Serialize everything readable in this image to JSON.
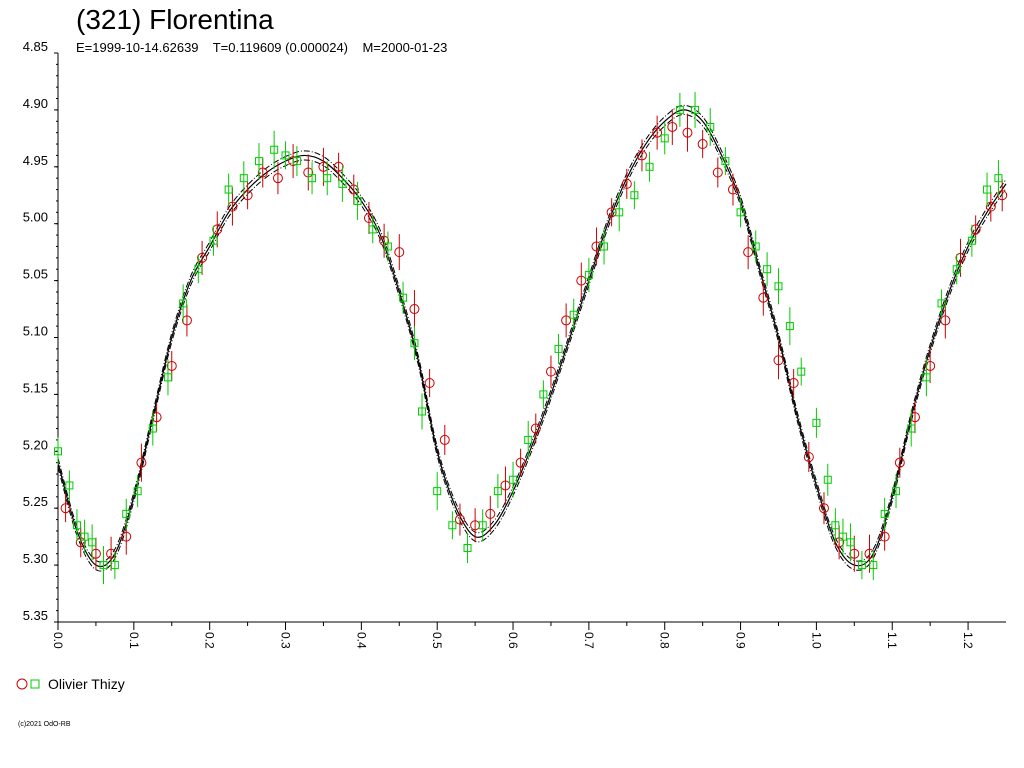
{
  "header": {
    "title": "(321) Florentina",
    "subtitle": "E=1999-10-14.62639    T=0.119609 (0.000024)    M=2000-01-23"
  },
  "legend": {
    "label": "Olivier Thizy"
  },
  "footer": {
    "copyright": "(c)2021 OdO-RB"
  },
  "colors": {
    "red": "#cc0000",
    "green": "#00cc00",
    "axis": "#000000"
  },
  "chart_data": {
    "type": "scatter",
    "x_ticks": [
      "0.0",
      "0.1",
      "0.2",
      "0.3",
      "0.4",
      "0.5",
      "0.6",
      "0.7",
      "0.8",
      "0.9",
      "1.0",
      "1.1",
      "1.2"
    ],
    "y_ticks": [
      "4.85",
      "4.90",
      "4.95",
      "5.00",
      "5.05",
      "5.10",
      "5.15",
      "5.20",
      "5.25",
      "5.30",
      "5.35"
    ],
    "xlim": [
      0.0,
      1.25
    ],
    "ylim": [
      4.85,
      5.35
    ],
    "y_inverted": true,
    "legend_position": "bottom-left",
    "fit_curve": {
      "x": [
        0.0,
        0.025,
        0.05,
        0.075,
        0.1,
        0.125,
        0.15,
        0.175,
        0.2,
        0.225,
        0.25,
        0.275,
        0.3,
        0.325,
        0.35,
        0.375,
        0.4,
        0.425,
        0.45,
        0.475,
        0.5,
        0.525,
        0.55,
        0.575,
        0.6,
        0.625,
        0.65,
        0.675,
        0.7,
        0.725,
        0.75,
        0.775,
        0.8,
        0.825,
        0.85,
        0.875,
        0.9,
        0.925,
        0.95,
        0.975,
        1.0,
        1.025,
        1.05,
        1.075,
        1.1,
        1.125,
        1.15,
        1.175,
        1.2,
        1.225,
        1.25
      ],
      "y": [
        5.21,
        5.27,
        5.3,
        5.29,
        5.24,
        5.17,
        5.1,
        5.05,
        5.02,
        4.99,
        4.97,
        4.955,
        4.945,
        4.94,
        4.945,
        4.96,
        4.98,
        5.01,
        5.06,
        5.12,
        5.2,
        5.25,
        5.275,
        5.265,
        5.235,
        5.195,
        5.15,
        5.1,
        5.05,
        5.0,
        4.96,
        4.93,
        4.91,
        4.9,
        4.91,
        4.94,
        4.98,
        5.04,
        5.1,
        5.17,
        5.23,
        5.28,
        5.3,
        5.29,
        5.24,
        5.17,
        5.11,
        5.06,
        5.02,
        4.99,
        4.965
      ]
    },
    "series": [
      {
        "name": "Olivier Thizy",
        "marker": "circle",
        "color": "#cc0000",
        "x": [
          0.01,
          0.03,
          0.05,
          0.07,
          0.09,
          0.11,
          0.13,
          0.15,
          0.17,
          0.19,
          0.21,
          0.23,
          0.25,
          0.27,
          0.29,
          0.31,
          0.33,
          0.35,
          0.37,
          0.39,
          0.41,
          0.43,
          0.45,
          0.47,
          0.49,
          0.51,
          0.53,
          0.55,
          0.57,
          0.59,
          0.61,
          0.63,
          0.65,
          0.67,
          0.69,
          0.71,
          0.73,
          0.75,
          0.77,
          0.79,
          0.81,
          0.83,
          0.85,
          0.87,
          0.89,
          0.91,
          0.93,
          0.95,
          0.97,
          0.99,
          1.01,
          1.03,
          1.05,
          1.07,
          1.09,
          1.11,
          1.13,
          1.15,
          1.17,
          1.19,
          1.21,
          1.23,
          1.245
        ],
        "y": [
          5.25,
          5.28,
          5.29,
          5.29,
          5.275,
          5.21,
          5.17,
          5.125,
          5.085,
          5.03,
          5.005,
          4.985,
          4.975,
          4.955,
          4.96,
          4.945,
          4.955,
          4.95,
          4.95,
          4.97,
          4.995,
          5.015,
          5.025,
          5.075,
          5.14,
          5.19,
          5.26,
          5.265,
          5.255,
          5.23,
          5.21,
          5.18,
          5.13,
          5.085,
          5.05,
          5.02,
          4.99,
          4.965,
          4.94,
          4.92,
          4.915,
          4.92,
          4.93,
          4.955,
          4.97,
          5.025,
          5.065,
          5.12,
          5.14,
          5.205,
          5.25,
          5.28,
          5.29,
          5.29,
          5.275,
          5.21,
          5.17,
          5.125,
          5.085,
          5.03,
          5.005,
          4.985,
          4.975
        ]
      },
      {
        "name": "Olivier Thizy",
        "marker": "square",
        "color": "#00cc00",
        "x": [
          0.0,
          0.015,
          0.025,
          0.035,
          0.045,
          0.06,
          0.075,
          0.09,
          0.105,
          0.125,
          0.145,
          0.165,
          0.185,
          0.205,
          0.225,
          0.245,
          0.265,
          0.285,
          0.3,
          0.315,
          0.335,
          0.355,
          0.375,
          0.395,
          0.415,
          0.435,
          0.455,
          0.47,
          0.48,
          0.5,
          0.52,
          0.54,
          0.56,
          0.58,
          0.6,
          0.62,
          0.64,
          0.66,
          0.68,
          0.7,
          0.72,
          0.74,
          0.76,
          0.78,
          0.8,
          0.82,
          0.84,
          0.86,
          0.88,
          0.9,
          0.92,
          0.935,
          0.95,
          0.965,
          0.98,
          1.0,
          1.015,
          1.025,
          1.035,
          1.045,
          1.06,
          1.075,
          1.09,
          1.105,
          1.125,
          1.145,
          1.165,
          1.185,
          1.205,
          1.225,
          1.24
        ],
        "y": [
          5.2,
          5.23,
          5.265,
          5.275,
          5.28,
          5.3,
          5.3,
          5.255,
          5.235,
          5.18,
          5.135,
          5.07,
          5.04,
          5.015,
          4.97,
          4.96,
          4.945,
          4.935,
          4.94,
          4.945,
          4.96,
          4.96,
          4.965,
          4.98,
          5.005,
          5.02,
          5.065,
          5.105,
          5.165,
          5.235,
          5.265,
          5.285,
          5.265,
          5.235,
          5.225,
          5.19,
          5.15,
          5.11,
          5.08,
          5.045,
          5.02,
          4.99,
          4.975,
          4.95,
          4.925,
          4.9,
          4.9,
          4.915,
          4.945,
          4.99,
          5.02,
          5.04,
          5.055,
          5.09,
          5.13,
          5.175,
          5.225,
          5.265,
          5.275,
          5.28,
          5.3,
          5.3,
          5.255,
          5.235,
          5.18,
          5.135,
          5.07,
          5.04,
          5.015,
          4.97,
          4.96
        ]
      }
    ]
  }
}
